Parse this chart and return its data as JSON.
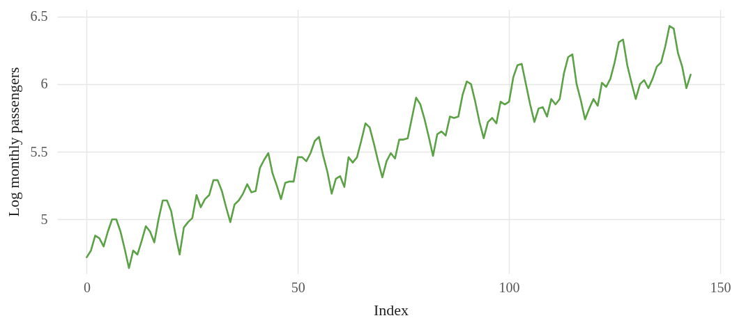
{
  "chart_data": {
    "type": "line",
    "xlabel": "Index",
    "ylabel": "Log monthly passengers",
    "x": [
      0,
      1,
      2,
      3,
      4,
      5,
      6,
      7,
      8,
      9,
      10,
      11,
      12,
      13,
      14,
      15,
      16,
      17,
      18,
      19,
      20,
      21,
      22,
      23,
      24,
      25,
      26,
      27,
      28,
      29,
      30,
      31,
      32,
      33,
      34,
      35,
      36,
      37,
      38,
      39,
      40,
      41,
      42,
      43,
      44,
      45,
      46,
      47,
      48,
      49,
      50,
      51,
      52,
      53,
      54,
      55,
      56,
      57,
      58,
      59,
      60,
      61,
      62,
      63,
      64,
      65,
      66,
      67,
      68,
      69,
      70,
      71,
      72,
      73,
      74,
      75,
      76,
      77,
      78,
      79,
      80,
      81,
      82,
      83,
      84,
      85,
      86,
      87,
      88,
      89,
      90,
      91,
      92,
      93,
      94,
      95,
      96,
      97,
      98,
      99,
      100,
      101,
      102,
      103,
      104,
      105,
      106,
      107,
      108,
      109,
      110,
      111,
      112,
      113,
      114,
      115,
      116,
      117,
      118,
      119,
      120,
      121,
      122,
      123,
      124,
      125,
      126,
      127,
      128,
      129,
      130,
      131,
      132,
      133,
      134,
      135,
      136,
      137,
      138,
      139,
      140,
      141,
      142,
      143
    ],
    "series": [
      {
        "color": "#5ba145",
        "values": [
          4.72,
          4.77,
          4.88,
          4.86,
          4.8,
          4.91,
          5.0,
          5.0,
          4.91,
          4.78,
          4.64,
          4.77,
          4.74,
          4.84,
          4.95,
          4.91,
          4.83,
          5.0,
          5.14,
          5.14,
          5.06,
          4.89,
          4.74,
          4.94,
          4.98,
          5.01,
          5.18,
          5.09,
          5.15,
          5.18,
          5.29,
          5.29,
          5.21,
          5.09,
          4.98,
          5.11,
          5.14,
          5.19,
          5.26,
          5.2,
          5.21,
          5.38,
          5.44,
          5.49,
          5.34,
          5.25,
          5.15,
          5.27,
          5.28,
          5.28,
          5.46,
          5.46,
          5.43,
          5.49,
          5.58,
          5.61,
          5.47,
          5.35,
          5.19,
          5.3,
          5.32,
          5.24,
          5.46,
          5.42,
          5.46,
          5.58,
          5.71,
          5.68,
          5.56,
          5.43,
          5.31,
          5.43,
          5.49,
          5.45,
          5.59,
          5.59,
          5.6,
          5.75,
          5.9,
          5.85,
          5.74,
          5.61,
          5.47,
          5.63,
          5.65,
          5.62,
          5.76,
          5.75,
          5.76,
          5.92,
          6.02,
          6.0,
          5.87,
          5.72,
          5.6,
          5.72,
          5.75,
          5.71,
          5.87,
          5.85,
          5.87,
          6.05,
          6.14,
          6.15,
          6.0,
          5.85,
          5.72,
          5.82,
          5.83,
          5.76,
          5.89,
          5.85,
          5.89,
          6.08,
          6.2,
          6.22,
          6.0,
          5.88,
          5.74,
          5.82,
          5.89,
          5.84,
          6.01,
          5.98,
          6.04,
          6.16,
          6.31,
          6.33,
          6.14,
          6.01,
          5.89,
          6.0,
          6.03,
          5.97,
          6.04,
          6.13,
          6.16,
          6.28,
          6.43,
          6.41,
          6.23,
          6.13,
          5.97,
          6.07
        ]
      }
    ],
    "xlim": [
      -7,
      151
    ],
    "xticks": [
      0,
      50,
      100,
      150
    ],
    "ylim": [
      4.6,
      6.55
    ],
    "yticks": [
      5,
      5.5,
      6,
      6.5
    ],
    "grid": true,
    "marker": "none",
    "line_style": "solid"
  }
}
